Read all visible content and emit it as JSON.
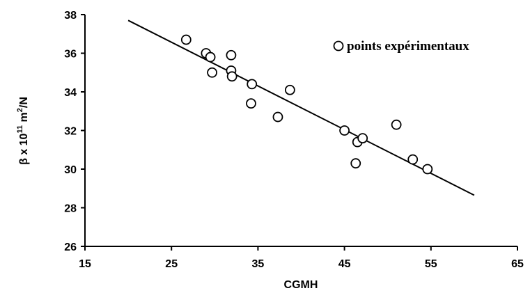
{
  "chart_data": {
    "type": "scatter",
    "title": "",
    "xlabel": "CGMH",
    "ylabel": {
      "prefix": "β x 10",
      "exp1": "11",
      "mid": " m",
      "exp2": "2",
      "suffix": "/N"
    },
    "xlim": [
      15,
      65
    ],
    "ylim": [
      26,
      38
    ],
    "x_ticks": [
      15,
      25,
      35,
      45,
      55,
      65
    ],
    "y_ticks": [
      26,
      28,
      30,
      32,
      34,
      36,
      38
    ],
    "legend": {
      "label": "points expérimentaux",
      "position": "top-right"
    },
    "series": [
      {
        "name": "points expérimentaux",
        "points": [
          [
            26.7,
            36.7
          ],
          [
            29.0,
            36.0
          ],
          [
            29.5,
            35.8
          ],
          [
            29.7,
            35.0
          ],
          [
            31.9,
            35.9
          ],
          [
            31.9,
            35.1
          ],
          [
            32.0,
            34.8
          ],
          [
            34.3,
            34.4
          ],
          [
            34.2,
            33.4
          ],
          [
            37.3,
            32.7
          ],
          [
            38.7,
            34.1
          ],
          [
            45.0,
            32.0
          ],
          [
            46.5,
            31.4
          ],
          [
            47.1,
            31.6
          ],
          [
            46.3,
            30.3
          ],
          [
            51.0,
            32.3
          ],
          [
            52.9,
            30.5
          ],
          [
            54.6,
            30.0
          ]
        ]
      }
    ],
    "fit_line": {
      "x": [
        20,
        60
      ],
      "y": [
        37.7,
        28.65
      ]
    },
    "grid": false
  }
}
